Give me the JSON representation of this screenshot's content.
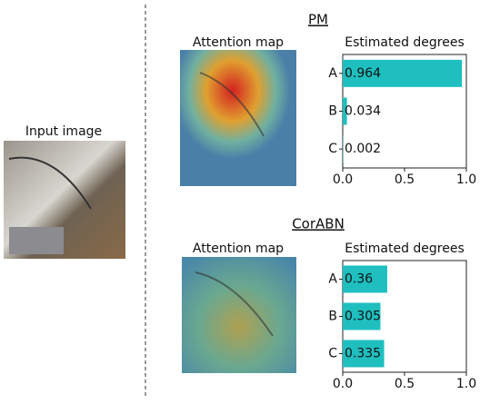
{
  "input_label": "Input image",
  "chart_data": [
    {
      "type": "bar",
      "orientation": "horizontal",
      "section": "PM",
      "map_label": "Attention map",
      "title": "Estimated degrees",
      "categories": [
        "A",
        "B",
        "C"
      ],
      "values": [
        0.964,
        0.034,
        0.002
      ],
      "color": "#1fbfbf",
      "xlim": [
        0,
        1
      ],
      "xticks": [
        {
          "value": 0,
          "label": "0.0"
        },
        0.5,
        {
          "value": 1,
          "label": "1.0"
        }
      ]
    },
    {
      "type": "bar",
      "orientation": "horizontal",
      "section": "CorABN",
      "map_label": "Attention map",
      "title": "Estimated degrees",
      "categories": [
        "A",
        "B",
        "C"
      ],
      "values": [
        0.36,
        0.305,
        0.335
      ],
      "color": "#1fbfbf",
      "xlim": [
        0,
        1
      ],
      "xticks": [
        {
          "value": 0,
          "label": "0.0"
        },
        0.5,
        {
          "value": 1,
          "label": "1.0"
        }
      ]
    }
  ]
}
